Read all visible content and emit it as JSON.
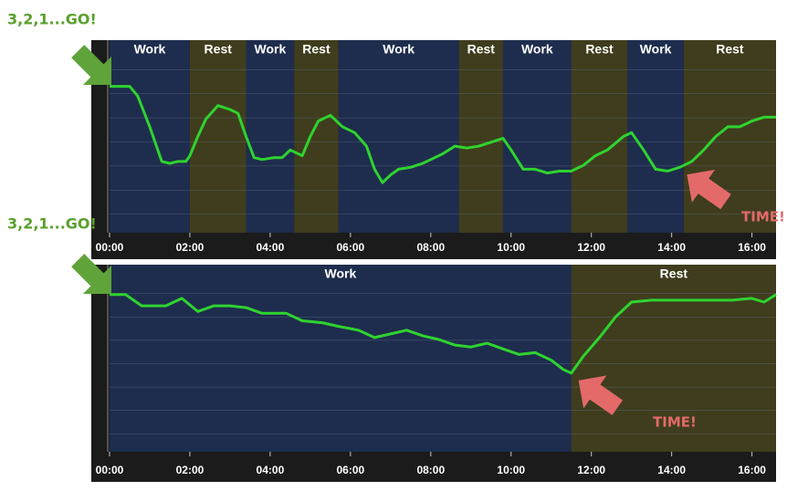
{
  "chart_data": [
    {
      "type": "line",
      "phases": [
        {
          "label": "Work",
          "start": 0,
          "end": 2.0
        },
        {
          "label": "Rest",
          "start": 2.0,
          "end": 3.4
        },
        {
          "label": "Work",
          "start": 3.4,
          "end": 4.6
        },
        {
          "label": "Rest",
          "start": 4.6,
          "end": 5.7
        },
        {
          "label": "Work",
          "start": 5.7,
          "end": 8.7
        },
        {
          "label": "Rest",
          "start": 8.7,
          "end": 9.8
        },
        {
          "label": "Work",
          "start": 9.8,
          "end": 11.5
        },
        {
          "label": "Rest",
          "start": 11.5,
          "end": 12.9
        },
        {
          "label": "Work",
          "start": 12.9,
          "end": 14.3
        },
        {
          "label": "Rest",
          "start": 14.3,
          "end": 16.6
        }
      ],
      "x": [
        0,
        0.5,
        0.7,
        1.0,
        1.2,
        1.3,
        1.5,
        1.7,
        1.9,
        2.0,
        2.2,
        2.4,
        2.7,
        3.0,
        3.2,
        3.4,
        3.6,
        3.8,
        4.1,
        4.3,
        4.5,
        4.8,
        5.0,
        5.2,
        5.5,
        5.8,
        6.1,
        6.4,
        6.6,
        6.8,
        7.0,
        7.2,
        7.5,
        7.8,
        8.0,
        8.3,
        8.6,
        8.9,
        9.2,
        9.5,
        9.8,
        10.0,
        10.3,
        10.6,
        10.9,
        11.2,
        11.5,
        11.8,
        12.1,
        12.4,
        12.8,
        13.0,
        13.3,
        13.6,
        13.9,
        14.2,
        14.5,
        14.8,
        15.1,
        15.4,
        15.7,
        16.0,
        16.3,
        16.6
      ],
      "values": [
        76,
        76,
        71,
        55,
        43,
        37,
        36,
        37,
        37,
        40,
        50,
        59,
        66,
        64,
        62,
        50,
        39,
        38,
        39,
        39,
        43,
        40,
        50,
        58,
        61,
        55,
        52,
        45,
        33,
        26,
        30,
        33,
        34,
        36,
        38,
        41,
        45,
        44,
        45,
        47,
        49,
        43,
        33,
        33,
        31,
        32,
        32,
        35,
        40,
        43,
        50,
        52,
        43,
        33,
        32,
        34,
        37,
        43,
        50,
        55,
        55,
        58,
        60,
        60
      ],
      "color": "#2fd32f",
      "xlim": [
        0,
        16.6
      ],
      "ylim": [
        0,
        100
      ],
      "xticks": [
        {
          "value": 0,
          "label": "00:00"
        },
        {
          "value": 2,
          "label": "02:00"
        },
        {
          "value": 4,
          "label": "04:00"
        },
        {
          "value": 6,
          "label": "06:00"
        },
        {
          "value": 8,
          "label": "08:00"
        },
        {
          "value": 10,
          "label": "10:00"
        },
        {
          "value": 12,
          "label": "12:00"
        },
        {
          "value": 14,
          "label": "14:00"
        },
        {
          "value": 16,
          "label": "16:00"
        }
      ],
      "grid": true,
      "annotations": [
        "3,2,1...GO!",
        "TIME!"
      ]
    },
    {
      "type": "line",
      "phases": [
        {
          "label": "Work",
          "start": 0,
          "end": 11.5
        },
        {
          "label": "Rest",
          "start": 11.5,
          "end": 16.6
        }
      ],
      "x": [
        0,
        0.4,
        0.8,
        1.4,
        1.8,
        2.2,
        2.6,
        3.0,
        3.4,
        3.8,
        4.4,
        4.8,
        5.3,
        5.7,
        6.2,
        6.6,
        7.0,
        7.4,
        7.8,
        8.2,
        8.6,
        9.0,
        9.4,
        9.8,
        10.2,
        10.6,
        11.0,
        11.3,
        11.5,
        11.8,
        12.2,
        12.6,
        13.0,
        13.5,
        14.0,
        14.5,
        15.0,
        15.5,
        16.0,
        16.3,
        16.6
      ],
      "values": [
        84,
        84,
        78,
        78,
        82,
        75,
        78,
        78,
        77,
        74,
        74,
        70,
        69,
        67,
        65,
        61,
        63,
        65,
        62,
        60,
        57,
        56,
        58,
        55,
        52,
        53,
        49,
        44,
        42,
        51,
        61,
        72,
        80,
        81,
        81,
        81,
        81,
        81,
        82,
        80,
        84
      ],
      "color": "#2fd32f",
      "xlim": [
        0,
        16.6
      ],
      "ylim": [
        0,
        100
      ],
      "xticks": [
        {
          "value": 0,
          "label": "00:00"
        },
        {
          "value": 2,
          "label": "02:00"
        },
        {
          "value": 4,
          "label": "04:00"
        },
        {
          "value": 6,
          "label": "06:00"
        },
        {
          "value": 8,
          "label": "08:00"
        },
        {
          "value": 10,
          "label": "10:00"
        },
        {
          "value": 12,
          "label": "12:00"
        },
        {
          "value": 14,
          "label": "14:00"
        },
        {
          "value": 16,
          "label": "16:00"
        }
      ],
      "grid": true,
      "annotations": [
        "3,2,1...GO!",
        "TIME!"
      ]
    }
  ]
}
